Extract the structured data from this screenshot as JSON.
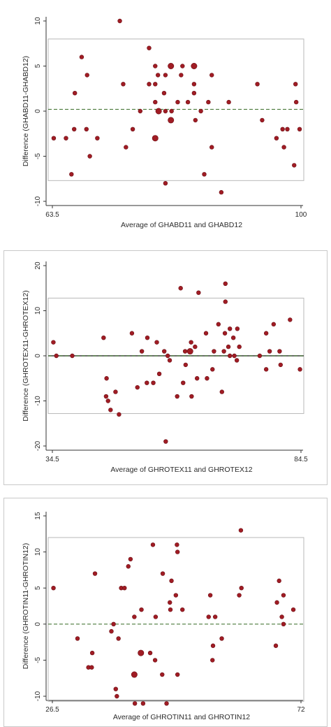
{
  "chart_data": [
    {
      "type": "scatter",
      "title": "",
      "xlabel": "Average of GHABD11 and GHABD12",
      "ylabel": "Difference (GHABD11-GHABD12)",
      "xlim": [
        63.5,
        100
      ],
      "ylim": [
        -10,
        10
      ],
      "x_ticks": [
        "63.5",
        "100"
      ],
      "y_ticks": [
        "-10",
        "-5",
        "0",
        "5",
        "10"
      ],
      "mean_difference": 0.2,
      "limits_of_agreement": [
        -7.7,
        8.0
      ],
      "colors": {
        "point": "#a01c24",
        "mean_line": "#4a7a3a",
        "limit_box": "#b8b8b8"
      },
      "points": [
        {
          "x": 63.7,
          "y": -3
        },
        {
          "x": 65.5,
          "y": -3
        },
        {
          "x": 66.3,
          "y": -7
        },
        {
          "x": 66.7,
          "y": -2
        },
        {
          "x": 66.8,
          "y": 2
        },
        {
          "x": 67.8,
          "y": 6
        },
        {
          "x": 68.6,
          "y": 4
        },
        {
          "x": 68.5,
          "y": -2
        },
        {
          "x": 69.0,
          "y": -5
        },
        {
          "x": 70.1,
          "y": -3
        },
        {
          "x": 73.4,
          "y": 10
        },
        {
          "x": 73.9,
          "y": 3
        },
        {
          "x": 74.3,
          "y": -4
        },
        {
          "x": 75.3,
          "y": -2
        },
        {
          "x": 76.4,
          "y": 0
        },
        {
          "x": 77.7,
          "y": 7
        },
        {
          "x": 77.7,
          "y": 3
        },
        {
          "x": 78.6,
          "y": 5
        },
        {
          "x": 78.6,
          "y": 3
        },
        {
          "x": 78.6,
          "y": 1
        },
        {
          "x": 78.6,
          "y": -3,
          "s": 2
        },
        {
          "x": 79.0,
          "y": 4
        },
        {
          "x": 79.1,
          "y": 0,
          "s": 2
        },
        {
          "x": 79.9,
          "y": 2
        },
        {
          "x": 80.1,
          "y": 4
        },
        {
          "x": 80.1,
          "y": 0
        },
        {
          "x": 80.1,
          "y": -8
        },
        {
          "x": 80.9,
          "y": 5,
          "s": 2
        },
        {
          "x": 80.9,
          "y": -1,
          "s": 2
        },
        {
          "x": 81.0,
          "y": 0
        },
        {
          "x": 81.9,
          "y": 1
        },
        {
          "x": 82.4,
          "y": 4
        },
        {
          "x": 82.6,
          "y": 5
        },
        {
          "x": 83.4,
          "y": 1
        },
        {
          "x": 84.3,
          "y": 5,
          "s": 2
        },
        {
          "x": 84.3,
          "y": 3
        },
        {
          "x": 84.3,
          "y": 2
        },
        {
          "x": 84.5,
          "y": -1
        },
        {
          "x": 85.3,
          "y": 0
        },
        {
          "x": 85.8,
          "y": -7
        },
        {
          "x": 86.4,
          "y": 1
        },
        {
          "x": 86.9,
          "y": 4
        },
        {
          "x": 86.9,
          "y": -4
        },
        {
          "x": 88.3,
          "y": -9
        },
        {
          "x": 89.4,
          "y": 1
        },
        {
          "x": 93.6,
          "y": 3
        },
        {
          "x": 94.3,
          "y": -1
        },
        {
          "x": 96.4,
          "y": -3
        },
        {
          "x": 97.3,
          "y": -2
        },
        {
          "x": 97.5,
          "y": -4
        },
        {
          "x": 98.0,
          "y": -2
        },
        {
          "x": 99.2,
          "y": 3
        },
        {
          "x": 99.3,
          "y": 1
        },
        {
          "x": 99.0,
          "y": -6
        },
        {
          "x": 99.8,
          "y": -2
        }
      ]
    },
    {
      "type": "scatter",
      "title": "",
      "xlabel": "Average of GHROTEX11 and GHROTEX12",
      "ylabel": "Difference (GHROTEX11-GHROTEX12)",
      "xlim": [
        34.5,
        84.5
      ],
      "ylim": [
        -20,
        20
      ],
      "x_ticks": [
        "34.5",
        "84.5"
      ],
      "y_ticks": [
        "-20",
        "-10",
        "0",
        "10",
        "20"
      ],
      "mean_difference": 0.0,
      "limits_of_agreement": [
        -12.8,
        12.8
      ],
      "colors": {
        "point": "#a01c24",
        "mean_line": "#3a3a3a",
        "mean_line_2": "#4a7a3a",
        "limit_box": "#b8b8b8"
      },
      "points": [
        {
          "x": 34.7,
          "y": 3
        },
        {
          "x": 35.3,
          "y": 0
        },
        {
          "x": 38.5,
          "y": 0
        },
        {
          "x": 44.8,
          "y": 4
        },
        {
          "x": 45.4,
          "y": -5
        },
        {
          "x": 45.3,
          "y": -9
        },
        {
          "x": 45.7,
          "y": -10
        },
        {
          "x": 46.2,
          "y": -12
        },
        {
          "x": 47.2,
          "y": -8
        },
        {
          "x": 47.9,
          "y": -13
        },
        {
          "x": 50.5,
          "y": 5
        },
        {
          "x": 51.6,
          "y": -7
        },
        {
          "x": 52.5,
          "y": 1
        },
        {
          "x": 53.5,
          "y": -6
        },
        {
          "x": 53.6,
          "y": 4
        },
        {
          "x": 54.8,
          "y": -6
        },
        {
          "x": 55.5,
          "y": 3
        },
        {
          "x": 56.0,
          "y": -4
        },
        {
          "x": 57.0,
          "y": 1
        },
        {
          "x": 57.3,
          "y": -19
        },
        {
          "x": 57.7,
          "y": 0
        },
        {
          "x": 58.1,
          "y": -1
        },
        {
          "x": 59.6,
          "y": -9
        },
        {
          "x": 60.3,
          "y": 15
        },
        {
          "x": 60.8,
          "y": -6
        },
        {
          "x": 61.2,
          "y": 1
        },
        {
          "x": 61.3,
          "y": -2
        },
        {
          "x": 62.2,
          "y": 1,
          "s": 2
        },
        {
          "x": 62.4,
          "y": 3
        },
        {
          "x": 62.5,
          "y": -9
        },
        {
          "x": 63.2,
          "y": 2
        },
        {
          "x": 63.6,
          "y": -5
        },
        {
          "x": 63.9,
          "y": 14
        },
        {
          "x": 65.4,
          "y": 5
        },
        {
          "x": 65.6,
          "y": -5
        },
        {
          "x": 66.7,
          "y": -3
        },
        {
          "x": 67.0,
          "y": 1
        },
        {
          "x": 67.9,
          "y": 7
        },
        {
          "x": 68.6,
          "y": -8
        },
        {
          "x": 69.0,
          "y": 1
        },
        {
          "x": 69.2,
          "y": 5
        },
        {
          "x": 69.3,
          "y": 16
        },
        {
          "x": 69.3,
          "y": 12
        },
        {
          "x": 69.9,
          "y": 2
        },
        {
          "x": 70.2,
          "y": 0
        },
        {
          "x": 70.2,
          "y": 6
        },
        {
          "x": 70.9,
          "y": 4
        },
        {
          "x": 71.1,
          "y": 0
        },
        {
          "x": 71.6,
          "y": -1
        },
        {
          "x": 71.7,
          "y": 6
        },
        {
          "x": 72.1,
          "y": 2
        },
        {
          "x": 76.2,
          "y": 0
        },
        {
          "x": 77.5,
          "y": 5
        },
        {
          "x": 77.5,
          "y": -3
        },
        {
          "x": 78.2,
          "y": 1
        },
        {
          "x": 79.0,
          "y": 7
        },
        {
          "x": 80.2,
          "y": 1
        },
        {
          "x": 80.4,
          "y": -2
        },
        {
          "x": 82.3,
          "y": 8
        },
        {
          "x": 84.3,
          "y": -3
        }
      ]
    },
    {
      "type": "scatter",
      "title": "",
      "xlabel": "Average of GHROTIN11 and GHROTIN12",
      "ylabel": "Difference (GHROTIN11-GHROTIN12)",
      "xlim": [
        26.5,
        72
      ],
      "ylim": [
        -10,
        15
      ],
      "x_ticks": [
        "26.5",
        "72"
      ],
      "y_ticks": [
        "-10",
        "-5",
        "0",
        "5",
        "10",
        "15"
      ],
      "mean_difference": 0.0,
      "limits_of_agreement": [
        -10.7,
        12.0
      ],
      "colors": {
        "point": "#a01c24",
        "mean_line": "#4a7a3a",
        "limit_box": "#b8b8b8"
      },
      "points": [
        {
          "x": 26.7,
          "y": 5
        },
        {
          "x": 31.1,
          "y": -2
        },
        {
          "x": 33.1,
          "y": -6
        },
        {
          "x": 33.7,
          "y": -6
        },
        {
          "x": 33.8,
          "y": -4
        },
        {
          "x": 34.3,
          "y": 7
        },
        {
          "x": 37.3,
          "y": -1
        },
        {
          "x": 37.7,
          "y": 0
        },
        {
          "x": 38.1,
          "y": -9
        },
        {
          "x": 38.3,
          "y": -10
        },
        {
          "x": 38.6,
          "y": -2
        },
        {
          "x": 39.1,
          "y": 5
        },
        {
          "x": 39.7,
          "y": 5
        },
        {
          "x": 40.4,
          "y": 8
        },
        {
          "x": 40.8,
          "y": 9
        },
        {
          "x": 41.5,
          "y": -7,
          "s": 2
        },
        {
          "x": 41.6,
          "y": -11
        },
        {
          "x": 41.5,
          "y": 1
        },
        {
          "x": 42.8,
          "y": 2
        },
        {
          "x": 42.7,
          "y": -4,
          "s": 2
        },
        {
          "x": 43.1,
          "y": -11
        },
        {
          "x": 44.4,
          "y": -4
        },
        {
          "x": 44.9,
          "y": 11
        },
        {
          "x": 45.3,
          "y": -5
        },
        {
          "x": 45.4,
          "y": 1
        },
        {
          "x": 46.6,
          "y": -7
        },
        {
          "x": 46.7,
          "y": 7
        },
        {
          "x": 47.4,
          "y": -11
        },
        {
          "x": 48.0,
          "y": 3
        },
        {
          "x": 48.3,
          "y": 6
        },
        {
          "x": 48.1,
          "y": 2
        },
        {
          "x": 49.1,
          "y": 4
        },
        {
          "x": 49.3,
          "y": 11
        },
        {
          "x": 49.4,
          "y": 10
        },
        {
          "x": 49.4,
          "y": -7
        },
        {
          "x": 50.3,
          "y": 2
        },
        {
          "x": 55.1,
          "y": 1
        },
        {
          "x": 55.4,
          "y": 4
        },
        {
          "x": 55.9,
          "y": -3
        },
        {
          "x": 55.8,
          "y": -5
        },
        {
          "x": 56.3,
          "y": 1
        },
        {
          "x": 57.5,
          "y": -2
        },
        {
          "x": 60.7,
          "y": 4
        },
        {
          "x": 61.0,
          "y": 13
        },
        {
          "x": 61.1,
          "y": 5
        },
        {
          "x": 67.4,
          "y": -3
        },
        {
          "x": 67.6,
          "y": 3
        },
        {
          "x": 68.0,
          "y": 6
        },
        {
          "x": 68.5,
          "y": 1
        },
        {
          "x": 68.8,
          "y": 4
        },
        {
          "x": 68.8,
          "y": 0
        },
        {
          "x": 70.6,
          "y": 2
        }
      ]
    }
  ]
}
